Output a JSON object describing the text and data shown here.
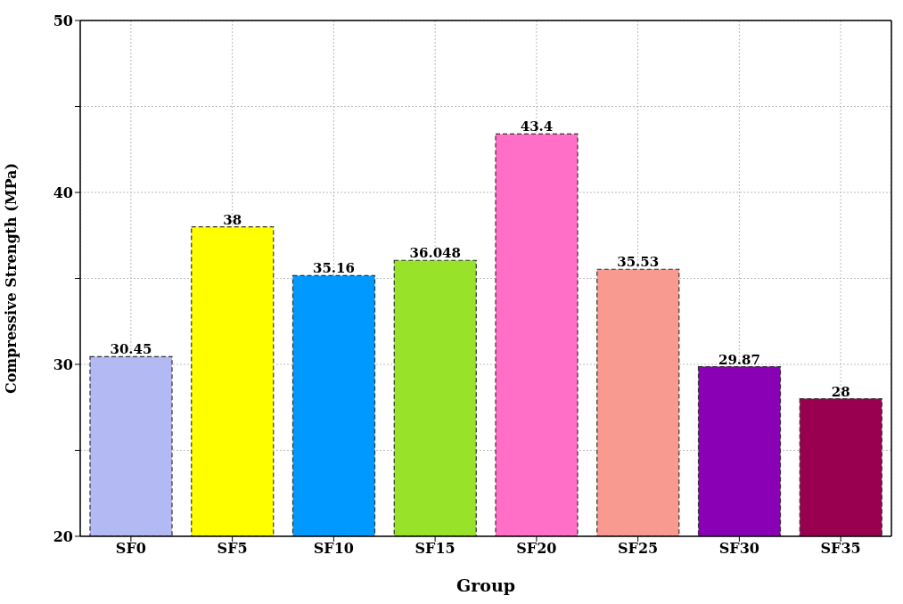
{
  "chart_data": {
    "type": "bar",
    "xlabel": "Group",
    "ylabel": "Compressive Strength (MPa)",
    "categories": [
      "SF0",
      "SF5",
      "SF10",
      "SF15",
      "SF20",
      "SF25",
      "SF30",
      "SF35"
    ],
    "values": [
      30.45,
      38,
      35.16,
      36.048,
      43.4,
      35.53,
      29.87,
      28
    ],
    "colors": [
      "#b3b9f2",
      "#ffff00",
      "#0099ff",
      "#99e22a",
      "#ff6ec7",
      "#f99a90",
      "#8a00b4",
      "#990050"
    ],
    "ylim": [
      20,
      50
    ],
    "yticks": [
      20,
      {
        "value": 25,
        "label": null
      },
      30,
      {
        "value": 35,
        "label": null
      },
      40,
      {
        "value": 45,
        "label": null
      },
      50
    ],
    "grid": true,
    "data_labels": true
  }
}
